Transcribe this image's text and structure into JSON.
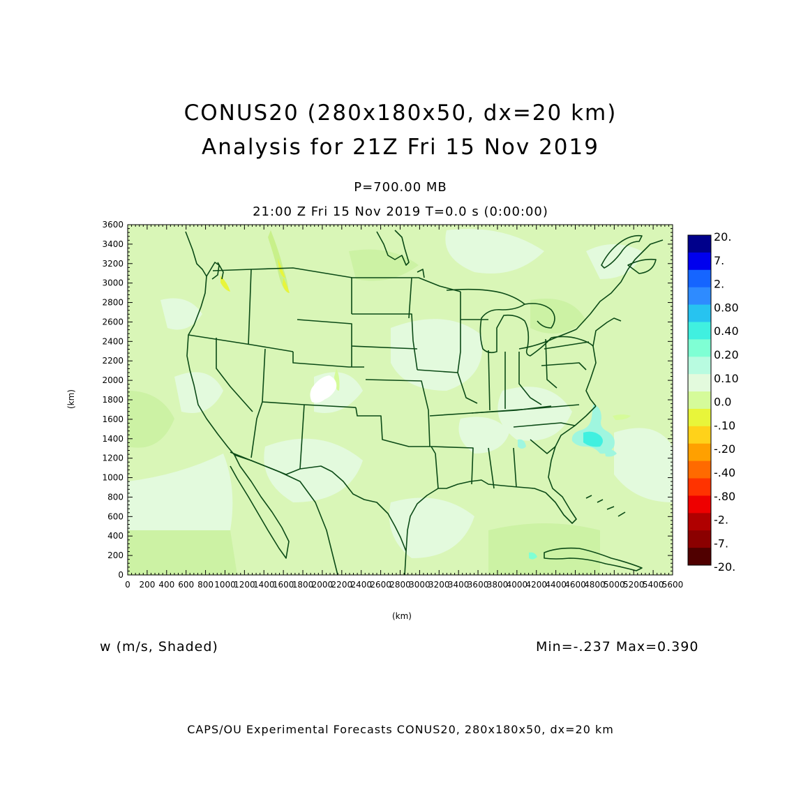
{
  "title": {
    "line1": "CONUS20 (280x180x50, dx=20 km)",
    "line2": "Analysis for 21Z Fri 15 Nov 2019"
  },
  "subtitle": {
    "pressure": "P=700.00 MB",
    "time": "21:00 Z Fri 15 Nov 2019    T=0.0 s (0:00:00)"
  },
  "axes": {
    "x_label": "(km)",
    "y_label": "(km)",
    "x_ticks": [
      "0",
      "200",
      "400",
      "600",
      "800",
      "1000",
      "1200",
      "1400",
      "1600",
      "1800",
      "2000",
      "2200",
      "2400",
      "2600",
      "2800",
      "3000",
      "3200",
      "3400",
      "3600",
      "3800",
      "4000",
      "4200",
      "4400",
      "4600",
      "4800",
      "5000",
      "5200",
      "5400",
      "5600"
    ],
    "y_ticks": [
      "0",
      "200",
      "400",
      "600",
      "800",
      "1000",
      "1200",
      "1400",
      "1600",
      "1800",
      "2000",
      "2200",
      "2400",
      "2600",
      "2800",
      "3000",
      "3200",
      "3400",
      "3600"
    ],
    "x_range": [
      0,
      5600
    ],
    "y_range": [
      0,
      3600
    ]
  },
  "colorbar": {
    "labels": [
      "20.",
      "7.",
      "2.",
      "0.80",
      "0.40",
      "0.20",
      "0.10",
      "0.0",
      "-.10",
      "-.20",
      "-.40",
      "-.80",
      "-2.",
      "-7.",
      "-20."
    ],
    "colors": [
      "#00008b",
      "#0000ee",
      "#1565ff",
      "#2e8bff",
      "#27c3f0",
      "#40f0e0",
      "#7fffd4",
      "#b8fbe0",
      "#e3fadd",
      "#d5fb9a",
      "#e8f53a",
      "#ffd21a",
      "#ffa000",
      "#ff6a00",
      "#ff3300",
      "#ee0000",
      "#b00000",
      "#8b0000",
      "#500000"
    ]
  },
  "field": {
    "variable": "w (m/s, Shaded)",
    "range": "Min=-.237  Max=0.390",
    "background_color": "#d9f6b7",
    "boundary_color": "#0b4a16"
  },
  "footer": "CAPS/OU Experimental Forecasts  CONUS20, 280x180x50, dx=20 km"
}
